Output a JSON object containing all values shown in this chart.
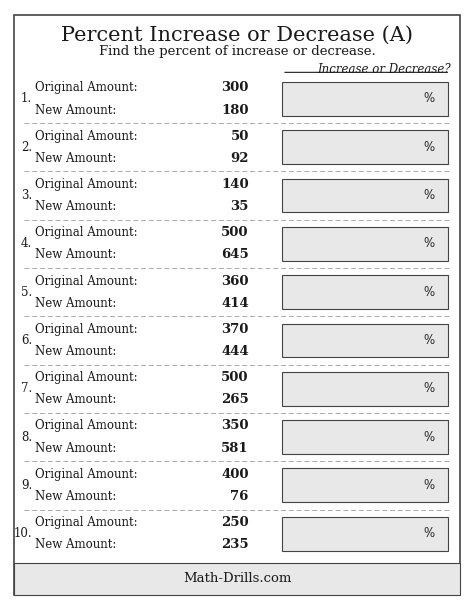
{
  "title": "Percent Increase or Decrease (A)",
  "subtitle": "Find the percent of increase or decrease.",
  "column_header": "Increase or Decrease?",
  "footer": "Math-Drills.com",
  "problems": [
    {
      "num": 1,
      "original": 300,
      "new": 180
    },
    {
      "num": 2,
      "original": 50,
      "new": 92
    },
    {
      "num": 3,
      "original": 140,
      "new": 35
    },
    {
      "num": 4,
      "original": 500,
      "new": 645
    },
    {
      "num": 5,
      "original": 360,
      "new": 414
    },
    {
      "num": 6,
      "original": 370,
      "new": 444
    },
    {
      "num": 7,
      "original": 500,
      "new": 265
    },
    {
      "num": 8,
      "original": 350,
      "new": 581
    },
    {
      "num": 9,
      "original": 400,
      "new": 76
    },
    {
      "num": 10,
      "original": 250,
      "new": 235
    }
  ],
  "bg_color": "#ffffff",
  "text_color": "#1a1a1a",
  "border_color": "#444444",
  "dash_color": "#aaaaaa",
  "box_color": "#e8e8e8",
  "title_fontsize": 15,
  "subtitle_fontsize": 9.5,
  "body_fontsize": 8.5,
  "header_fontsize": 8.5
}
